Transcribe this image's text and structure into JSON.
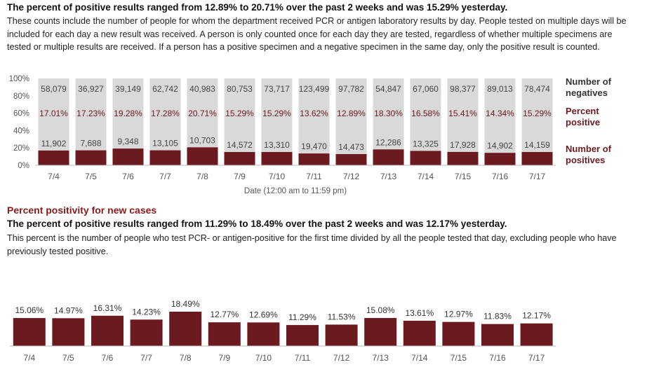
{
  "top": {
    "headline": "The percent of positive results ranged from 12.89% to 20.71% over the past 2 weeks and was 15.29% yesterday.",
    "description": "These counts include the number of people for whom the department received PCR or antigen laboratory results by day. People tested on multiple days will be included for each day a new result was received. A person is only counted once for each day they are tested, regardless of whether multiple specimens are tested or multiple results are received. If a person has a positive specimen and a negative specimen in the same day, only the positive result is counted."
  },
  "bottom": {
    "section_title": "Percent positivity for new cases",
    "headline": "The percent of positive results ranged from 11.29% to 18.49% over the past 2 weeks and was 12.17% yesterday.",
    "description": "This percent is the number of people who test PCR- or antigen-positive for the first time divided by all the people tested that day, excluding people who have previously tested positive."
  },
  "colors": {
    "positive": "#6b1a1f",
    "negative": "#d9d9d9",
    "percent_text": "#6b1a1f",
    "count_text": "#444444",
    "axis_text": "#555555"
  },
  "chart_data": [
    {
      "type": "bar",
      "stacked": true,
      "normalized": true,
      "categories": [
        "7/4",
        "7/5",
        "7/6",
        "7/7",
        "7/8",
        "7/9",
        "7/10",
        "7/11",
        "7/12",
        "7/13",
        "7/14",
        "7/15",
        "7/16",
        "7/17"
      ],
      "series": [
        {
          "name": "Number of positives",
          "values": [
            11902,
            7688,
            9348,
            13105,
            10703,
            14572,
            13310,
            19470,
            14473,
            12286,
            13325,
            17928,
            14902,
            14159
          ]
        },
        {
          "name": "Number of negatives",
          "values": [
            58079,
            36927,
            39149,
            62742,
            40983,
            80753,
            73717,
            123499,
            97782,
            54847,
            67060,
            98377,
            89013,
            78474
          ]
        }
      ],
      "percent_positive": {
        "name": "Percent positive",
        "labels": [
          "17.01%",
          "17.23%",
          "19.28%",
          "17.28%",
          "20.71%",
          "15.29%",
          "15.29%",
          "13.62%",
          "12.89%",
          "18.30%",
          "16.58%",
          "15.41%",
          "14.34%",
          "15.29%"
        ],
        "values": [
          17.01,
          17.23,
          19.28,
          17.28,
          20.71,
          15.29,
          15.29,
          13.62,
          12.89,
          18.3,
          16.58,
          15.41,
          14.34,
          15.29
        ]
      },
      "positive_labels": [
        "11,902",
        "7,688",
        "9,348",
        "13,105",
        "10,703",
        "14,572",
        "13,310",
        "19,470",
        "14,473",
        "12,286",
        "13,325",
        "17,928",
        "14,902",
        "14,159"
      ],
      "negative_labels": [
        "58,079",
        "36,927",
        "39,149",
        "62,742",
        "40,983",
        "80,753",
        "73,717",
        "123,499",
        "97,782",
        "54,847",
        "67,060",
        "98,377",
        "89,013",
        "78,474"
      ],
      "yticks": [
        "0%",
        "20%",
        "40%",
        "60%",
        "80%",
        "100%"
      ],
      "ylim": [
        0,
        100
      ],
      "xlabel": "Date (12:00 am to 11:59 pm)",
      "ylabel": "",
      "grid": false,
      "legend_position": "right"
    },
    {
      "type": "bar",
      "categories": [
        "7/4",
        "7/5",
        "7/6",
        "7/7",
        "7/8",
        "7/9",
        "7/10",
        "7/11",
        "7/12",
        "7/13",
        "7/14",
        "7/15",
        "7/16",
        "7/17"
      ],
      "values": [
        15.06,
        14.97,
        16.31,
        14.23,
        18.49,
        12.77,
        12.69,
        11.29,
        11.53,
        15.08,
        13.61,
        12.97,
        11.83,
        12.17
      ],
      "value_labels": [
        "15.06%",
        "14.97%",
        "16.31%",
        "14.23%",
        "18.49%",
        "12.77%",
        "12.69%",
        "11.29%",
        "11.53%",
        "15.08%",
        "13.61%",
        "12.97%",
        "11.83%",
        "12.17%"
      ],
      "xlabel": "",
      "ylabel": "",
      "ylim": [
        0,
        28
      ],
      "grid": false
    }
  ]
}
